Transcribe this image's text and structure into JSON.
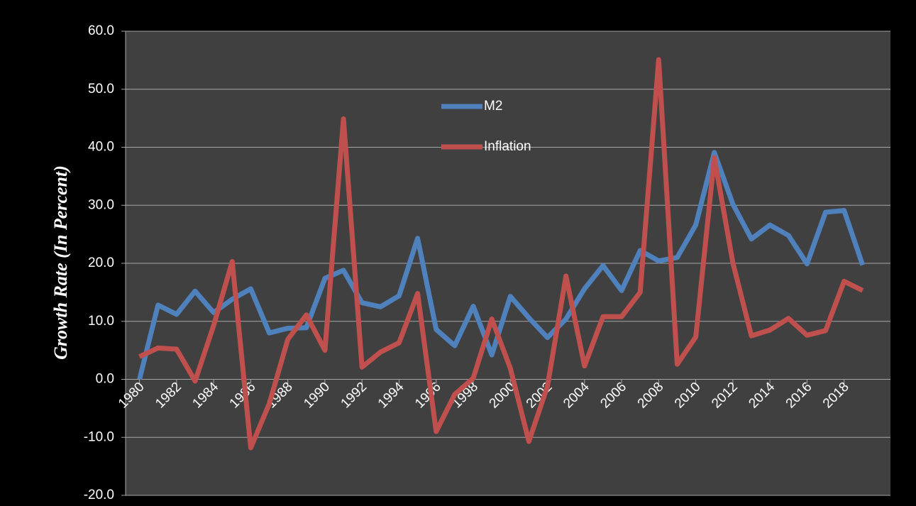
{
  "chart_data": {
    "type": "line",
    "y_label": "Growth Rate (In Percent)",
    "x": [
      1980,
      1981,
      1982,
      1983,
      1984,
      1985,
      1986,
      1987,
      1988,
      1989,
      1990,
      1991,
      1992,
      1993,
      1994,
      1995,
      1996,
      1997,
      1998,
      1999,
      2000,
      2001,
      2002,
      2003,
      2004,
      2005,
      2006,
      2007,
      2008,
      2009,
      2010,
      2011,
      2012,
      2013,
      2014,
      2015,
      2016,
      2017,
      2018,
      2019
    ],
    "series": [
      {
        "name": "M2",
        "color": "#4f81bd",
        "values": [
          0,
          12.8,
          11.2,
          15.2,
          11.5,
          13.8,
          15.6,
          8.0,
          8.8,
          8.9,
          17.4,
          18.8,
          13.2,
          12.5,
          14.4,
          24.3,
          8.6,
          5.8,
          12.6,
          4.2,
          14.3,
          10.6,
          7.2,
          10.4,
          15.6,
          19.6,
          15.3,
          22.2,
          20.4,
          21.0,
          26.6,
          39.1,
          30.2,
          24.2,
          26.6,
          24.8,
          19.9,
          28.8,
          29.1,
          19.7
        ]
      },
      {
        "name": "Inflation",
        "color": "#c0504d",
        "values": [
          3.9,
          5.4,
          5.2,
          -0.3,
          9.3,
          20.3,
          -11.8,
          -4.2,
          6.9,
          11.1,
          5.0,
          44.9,
          2.1,
          4.7,
          6.3,
          14.8,
          -9.0,
          -2.6,
          0.2,
          10.4,
          1.9,
          -10.7,
          -1.2,
          17.8,
          2.3,
          10.8,
          10.8,
          15.0,
          55.1,
          2.6,
          7.3,
          38.2,
          20.1,
          7.5,
          8.5,
          10.5,
          7.6,
          8.4,
          16.9,
          15.3
        ]
      }
    ],
    "xlim": [
      1979.25,
      2020.5
    ],
    "xticks": [
      1980,
      1982,
      1984,
      1986,
      1988,
      1990,
      1992,
      1994,
      1996,
      1998,
      2000,
      2002,
      2004,
      2006,
      2008,
      2010,
      2012,
      2014,
      2016,
      2018
    ],
    "ylim": [
      -20,
      60
    ],
    "yticks": [
      {
        "value": -20,
        "label": "-20.0"
      },
      {
        "value": -10,
        "label": "-10.0"
      },
      {
        "value": 0,
        "label": "0.0"
      },
      {
        "value": 10,
        "label": "10.0"
      },
      {
        "value": 20,
        "label": "20.0"
      },
      {
        "value": 30,
        "label": "30.0"
      },
      {
        "value": 40,
        "label": "40.0"
      },
      {
        "value": 50,
        "label": "50.0"
      },
      {
        "value": 60,
        "label": "60.0"
      }
    ],
    "grid": true
  }
}
